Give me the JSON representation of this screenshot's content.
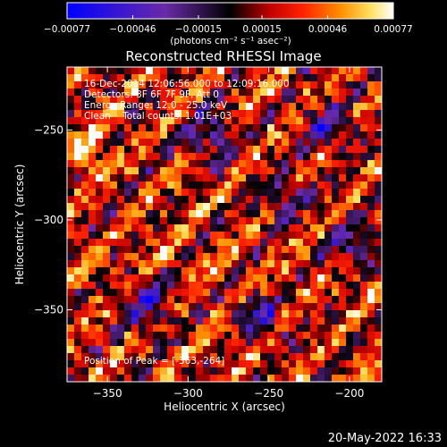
{
  "chart_data": {
    "type": "heatmap",
    "title": "Reconstructed RHESSI Image",
    "xlabel": "Heliocentric X (arcsec)",
    "ylabel": "Heliocentric Y (arcsec)",
    "xlim": [
      -375,
      -180
    ],
    "ylim": [
      -390,
      -215
    ],
    "x_ticks": [
      -350,
      -300,
      -250,
      -200
    ],
    "x_tick_labels": [
      "−350",
      "−300",
      "−250",
      "−200"
    ],
    "y_ticks": [
      -350,
      -300,
      -250
    ],
    "y_tick_labels": [
      "−350",
      "−300",
      "−250"
    ],
    "colorbar": {
      "range": [
        -0.00077,
        0.00077
      ],
      "tick_values": [
        -0.00077,
        -0.00046,
        -0.00015,
        0.00015,
        0.00046,
        0.00077
      ],
      "tick_labels": [
        "−0.00077",
        "−0.00046",
        "−0.00015",
        "0.00015",
        "0.00046",
        "0.00077"
      ],
      "units": "(photons cm⁻² s⁻¹ asec⁻²)",
      "colors": [
        "#0000ff",
        "#6a2aa8",
        "#000000",
        "#c00000",
        "#ff2000",
        "#ff9000",
        "#ffe060",
        "#ffffff"
      ]
    },
    "annotations": {
      "line1": "16-Dec-2014 12:06:56.000 to 12:09:16.000",
      "line2": "Detectors: 3F 6F 7F 9F, Att 0",
      "line3": "Energy Range: 12.0 - 25.0 keV",
      "line4": "Clean    Total counts: 1.01E+03",
      "peak": "Position of Peak = [-363,-264]"
    },
    "peak": [
      -363,
      -264
    ],
    "grid": false
  },
  "footer": {
    "date": "20-May-2022 16:33"
  }
}
